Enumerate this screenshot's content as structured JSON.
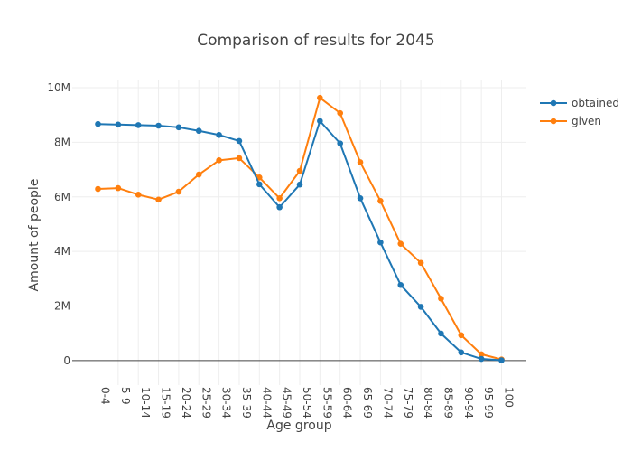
{
  "chart_data": {
    "type": "line",
    "title": "Comparison of results for 2045",
    "xlabel": "Age group",
    "ylabel": "Amount of people",
    "categories": [
      "0-4",
      "5-9",
      "10-14",
      "15-19",
      "20-24",
      "25-29",
      "30-34",
      "35-39",
      "40-44",
      "45-49",
      "50-54",
      "55-59",
      "60-64",
      "65-69",
      "70-74",
      "75-79",
      "80-84",
      "85-89",
      "90-94",
      "95-99",
      "100"
    ],
    "ylim": [
      -900000,
      10300000
    ],
    "yticks": [
      0,
      2000000,
      4000000,
      6000000,
      8000000,
      10000000
    ],
    "ytick_labels": [
      "0",
      "2M",
      "4M",
      "6M",
      "8M",
      "10M"
    ],
    "grid": true,
    "legend_position": "top-right",
    "series": [
      {
        "name": "obtained",
        "color": "#1f77b4",
        "values": [
          8670000,
          8650000,
          8630000,
          8610000,
          8550000,
          8420000,
          8270000,
          8050000,
          6460000,
          5620000,
          6450000,
          8780000,
          7960000,
          5950000,
          4330000,
          2770000,
          1970000,
          990000,
          300000,
          60000,
          10000
        ]
      },
      {
        "name": "given",
        "color": "#ff7f0e",
        "values": [
          6290000,
          6320000,
          6080000,
          5900000,
          6190000,
          6820000,
          7340000,
          7420000,
          6710000,
          5950000,
          6950000,
          9630000,
          9070000,
          7270000,
          5850000,
          4280000,
          3580000,
          2270000,
          930000,
          230000,
          40000
        ]
      }
    ]
  }
}
